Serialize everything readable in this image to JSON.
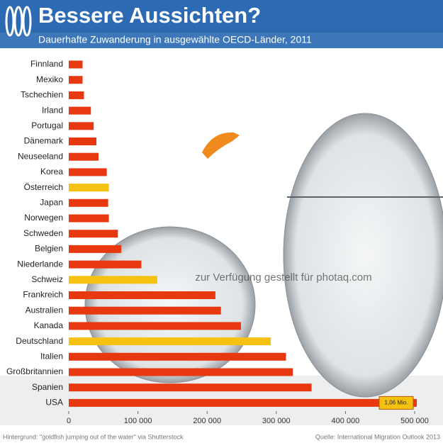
{
  "chart_data": {
    "type": "bar",
    "orientation": "horizontal",
    "title": "Bessere Aussichten?",
    "subtitle": "Dauerhafte Zuwanderung in ausgewählte OECD-Länder, 2011",
    "categories": [
      "Finnland",
      "Mexiko",
      "Tschechien",
      "Irland",
      "Portugal",
      "Dänemark",
      "Neuseeland",
      "Korea",
      "Österreich",
      "Japan",
      "Norwegen",
      "Schweden",
      "Belgien",
      "Niederlande",
      "Schweiz",
      "Frankreich",
      "Australien",
      "Kanada",
      "Deutschland",
      "Italien",
      "Großbritannien",
      "Spanien",
      "USA"
    ],
    "values": [
      20000,
      20000,
      22000,
      32000,
      36000,
      40000,
      43000,
      55000,
      58000,
      57000,
      58000,
      71000,
      76000,
      105000,
      128000,
      212000,
      220000,
      249000,
      292000,
      314000,
      324000,
      351000,
      1060000
    ],
    "value_labels": [
      null,
      null,
      null,
      null,
      null,
      null,
      null,
      null,
      null,
      null,
      null,
      null,
      null,
      null,
      null,
      null,
      null,
      null,
      null,
      null,
      null,
      null,
      "1,06 Mio."
    ],
    "colors": [
      "#e8380f",
      "#e8380f",
      "#e8380f",
      "#e8380f",
      "#e8380f",
      "#e8380f",
      "#e8380f",
      "#e8380f",
      "#f6c211",
      "#e8380f",
      "#e8380f",
      "#e8380f",
      "#e8380f",
      "#e8380f",
      "#f6c211",
      "#e8380f",
      "#e8380f",
      "#e8380f",
      "#f6c211",
      "#e8380f",
      "#e8380f",
      "#e8380f",
      "#e8380f"
    ],
    "xlim": [
      0,
      500000
    ],
    "xticks": [
      0,
      {
        "value": 100000,
        "label": "100 000"
      },
      {
        "value": 200000,
        "label": "200 000"
      },
      {
        "value": 300000,
        "label": "300 000"
      },
      {
        "value": 400000,
        "label": "400 000"
      },
      {
        "value": 500000,
        "label": "500 000"
      }
    ],
    "footnote": "Hintergrund: \"goldfish jumping out of the water\" via Shutterstock",
    "source": "Quelle: International Migration Outlook 2013",
    "watermark": "zur Verfügung gestellt für photaq.com"
  }
}
